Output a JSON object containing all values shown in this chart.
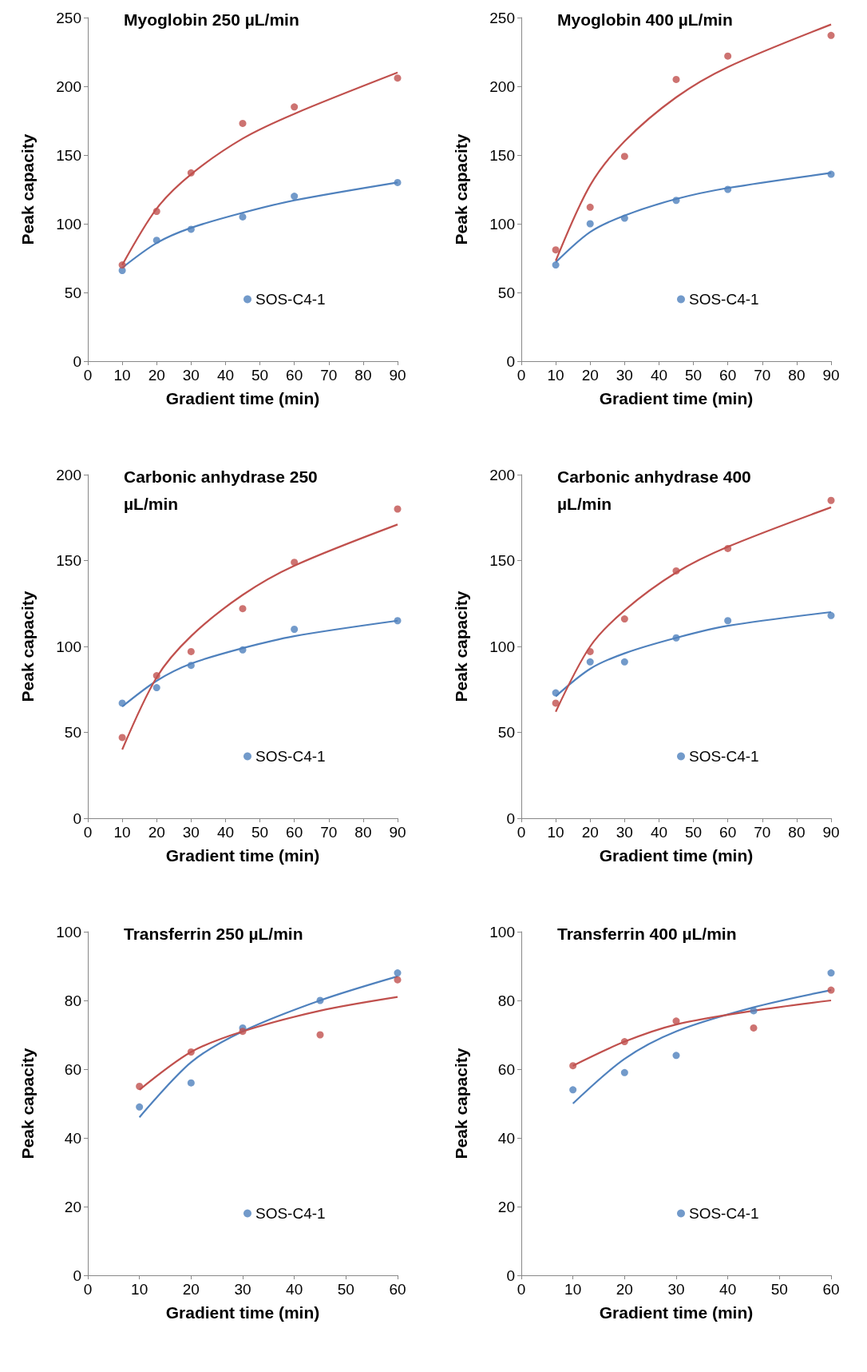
{
  "chart_data": [
    {
      "type": "scatter",
      "title": "Myoglobin 250 µL/min",
      "xlabel": "Gradient time (min)",
      "ylabel": "Peak capacity",
      "xlim": [
        0,
        90
      ],
      "xticks": [
        0,
        10,
        20,
        30,
        40,
        50,
        60,
        70,
        80,
        90
      ],
      "ylim": [
        0,
        250
      ],
      "yticks": [
        0,
        50,
        100,
        150,
        200,
        250
      ],
      "grid": false,
      "legend": "bottom right",
      "series": [
        {
          "name": "SOS-C4-1",
          "color": "#4f81bd",
          "marker": "circle",
          "x": [
            10,
            20,
            30,
            45,
            60,
            90
          ],
          "values": [
            66,
            88,
            96,
            105,
            120,
            130
          ]
        },
        {
          "color": "#c0504d",
          "marker": "circle",
          "x": [
            10,
            20,
            30,
            45,
            60,
            90
          ],
          "values": [
            70,
            109,
            137,
            173,
            185,
            206
          ]
        },
        {
          "type": "line",
          "color": "#4f81bd",
          "marker": "none",
          "x": [
            10,
            20,
            30,
            45,
            60,
            90
          ],
          "values": [
            68,
            86,
            97,
            108,
            117,
            130
          ]
        },
        {
          "type": "line",
          "color": "#c0504d",
          "marker": "none",
          "x": [
            10,
            20,
            30,
            45,
            60,
            90
          ],
          "values": [
            70,
            111,
            136,
            162,
            180,
            210
          ]
        }
      ]
    },
    {
      "type": "scatter",
      "title": "Myoglobin 400 µL/min",
      "xlabel": "Gradient time (min)",
      "ylabel": "Peak capacity",
      "xlim": [
        0,
        90
      ],
      "xticks": [
        0,
        10,
        20,
        30,
        40,
        50,
        60,
        70,
        80,
        90
      ],
      "ylim": [
        0,
        250
      ],
      "yticks": [
        0,
        50,
        100,
        150,
        200,
        250
      ],
      "grid": false,
      "legend": "bottom right",
      "series": [
        {
          "name": "SOS-C4-1",
          "color": "#4f81bd",
          "marker": "circle",
          "x": [
            10,
            20,
            30,
            45,
            60,
            90
          ],
          "values": [
            70,
            100,
            104,
            117,
            125,
            136
          ]
        },
        {
          "color": "#c0504d",
          "marker": "circle",
          "x": [
            10,
            20,
            30,
            45,
            60,
            90
          ],
          "values": [
            81,
            112,
            149,
            205,
            222,
            237
          ]
        },
        {
          "type": "line",
          "color": "#4f81bd",
          "marker": "none",
          "x": [
            10,
            20,
            30,
            45,
            60,
            90
          ],
          "values": [
            72,
            94,
            106,
            118,
            126,
            137
          ]
        },
        {
          "type": "line",
          "color": "#c0504d",
          "marker": "none",
          "x": [
            10,
            20,
            30,
            45,
            60,
            90
          ],
          "values": [
            73,
            128,
            160,
            192,
            214,
            245
          ]
        }
      ]
    },
    {
      "type": "scatter",
      "title": "Carbonic anhydrase 250 µL/min",
      "xlabel": "Gradient time (min)",
      "ylabel": "Peak capacity",
      "xlim": [
        0,
        90
      ],
      "xticks": [
        0,
        10,
        20,
        30,
        40,
        50,
        60,
        70,
        80,
        90
      ],
      "ylim": [
        0,
        200
      ],
      "yticks": [
        0,
        50,
        100,
        150,
        200
      ],
      "grid": false,
      "legend": "bottom right",
      "series": [
        {
          "name": "SOS-C4-1",
          "color": "#4f81bd",
          "marker": "circle",
          "x": [
            10,
            20,
            30,
            45,
            60,
            90
          ],
          "values": [
            67,
            76,
            89,
            98,
            110,
            115
          ]
        },
        {
          "color": "#c0504d",
          "marker": "circle",
          "x": [
            10,
            20,
            30,
            45,
            60,
            90
          ],
          "values": [
            47,
            83,
            97,
            122,
            149,
            180
          ]
        },
        {
          "type": "line",
          "color": "#4f81bd",
          "marker": "none",
          "x": [
            10,
            20,
            30,
            45,
            60,
            90
          ],
          "values": [
            65,
            80,
            90,
            99,
            106,
            115
          ]
        },
        {
          "type": "line",
          "color": "#c0504d",
          "marker": "none",
          "x": [
            10,
            20,
            30,
            45,
            60,
            90
          ],
          "values": [
            40,
            82,
            106,
            130,
            147,
            171
          ]
        }
      ]
    },
    {
      "type": "scatter",
      "title": "Carbonic anhydrase 400 µL/min",
      "xlabel": "Gradient time (min)",
      "ylabel": "Peak capacity",
      "xlim": [
        0,
        90
      ],
      "xticks": [
        0,
        10,
        20,
        30,
        40,
        50,
        60,
        70,
        80,
        90
      ],
      "ylim": [
        0,
        200
      ],
      "yticks": [
        0,
        50,
        100,
        150,
        200
      ],
      "grid": false,
      "legend": "bottom right",
      "series": [
        {
          "name": "SOS-C4-1",
          "color": "#4f81bd",
          "marker": "circle",
          "x": [
            10,
            20,
            30,
            45,
            60,
            90
          ],
          "values": [
            73,
            91,
            91,
            105,
            115,
            118
          ]
        },
        {
          "color": "#c0504d",
          "marker": "circle",
          "x": [
            10,
            20,
            30,
            45,
            60,
            90
          ],
          "values": [
            67,
            97,
            116,
            144,
            157,
            185
          ]
        },
        {
          "type": "line",
          "color": "#4f81bd",
          "marker": "none",
          "x": [
            10,
            20,
            30,
            45,
            60,
            90
          ],
          "values": [
            71,
            87,
            96,
            105,
            112,
            120
          ]
        },
        {
          "type": "line",
          "color": "#c0504d",
          "marker": "none",
          "x": [
            10,
            20,
            30,
            45,
            60,
            90
          ],
          "values": [
            62,
            100,
            121,
            143,
            158,
            181
          ]
        }
      ]
    },
    {
      "type": "scatter",
      "title": "Transferrin 250 µL/min",
      "xlabel": "Gradient time (min)",
      "ylabel": "Peak capacity",
      "xlim": [
        0,
        60
      ],
      "xticks": [
        0,
        10,
        20,
        30,
        40,
        50,
        60
      ],
      "ylim": [
        0,
        100
      ],
      "yticks": [
        0,
        20,
        40,
        60,
        80,
        100
      ],
      "grid": false,
      "legend": "bottom right",
      "series": [
        {
          "name": "SOS-C4-1",
          "color": "#4f81bd",
          "marker": "circle",
          "x": [
            10,
            20,
            30,
            45,
            60
          ],
          "values": [
            49,
            56,
            72,
            80,
            88
          ]
        },
        {
          "color": "#c0504d",
          "marker": "circle",
          "x": [
            10,
            20,
            30,
            45,
            60
          ],
          "values": [
            55,
            65,
            71,
            70,
            86
          ]
        },
        {
          "type": "line",
          "color": "#4f81bd",
          "marker": "none",
          "x": [
            10,
            20,
            30,
            45,
            60
          ],
          "values": [
            46,
            62,
            71,
            80,
            87
          ]
        },
        {
          "type": "line",
          "color": "#c0504d",
          "marker": "none",
          "x": [
            10,
            20,
            30,
            45,
            60
          ],
          "values": [
            54,
            65,
            71,
            77,
            81
          ]
        }
      ]
    },
    {
      "type": "scatter",
      "title": "Transferrin 400 µL/min",
      "xlabel": "Gradient time (min)",
      "ylabel": "Peak capacity",
      "xlim": [
        0,
        60
      ],
      "xticks": [
        0,
        10,
        20,
        30,
        40,
        50,
        60
      ],
      "ylim": [
        0,
        100
      ],
      "yticks": [
        0,
        20,
        40,
        60,
        80,
        100
      ],
      "grid": false,
      "legend": "bottom right",
      "series": [
        {
          "name": "SOS-C4-1",
          "color": "#4f81bd",
          "marker": "circle",
          "x": [
            10,
            20,
            30,
            45,
            60
          ],
          "values": [
            54,
            59,
            64,
            77,
            88
          ]
        },
        {
          "color": "#c0504d",
          "marker": "circle",
          "x": [
            10,
            20,
            30,
            45,
            60
          ],
          "values": [
            61,
            68,
            74,
            72,
            83
          ]
        },
        {
          "type": "line",
          "color": "#4f81bd",
          "marker": "none",
          "x": [
            10,
            20,
            30,
            45,
            60
          ],
          "values": [
            50,
            63,
            71,
            78,
            83
          ]
        },
        {
          "type": "line",
          "color": "#c0504d",
          "marker": "none",
          "x": [
            10,
            20,
            30,
            45,
            60
          ],
          "values": [
            61,
            68,
            73,
            77,
            80
          ]
        }
      ]
    }
  ]
}
